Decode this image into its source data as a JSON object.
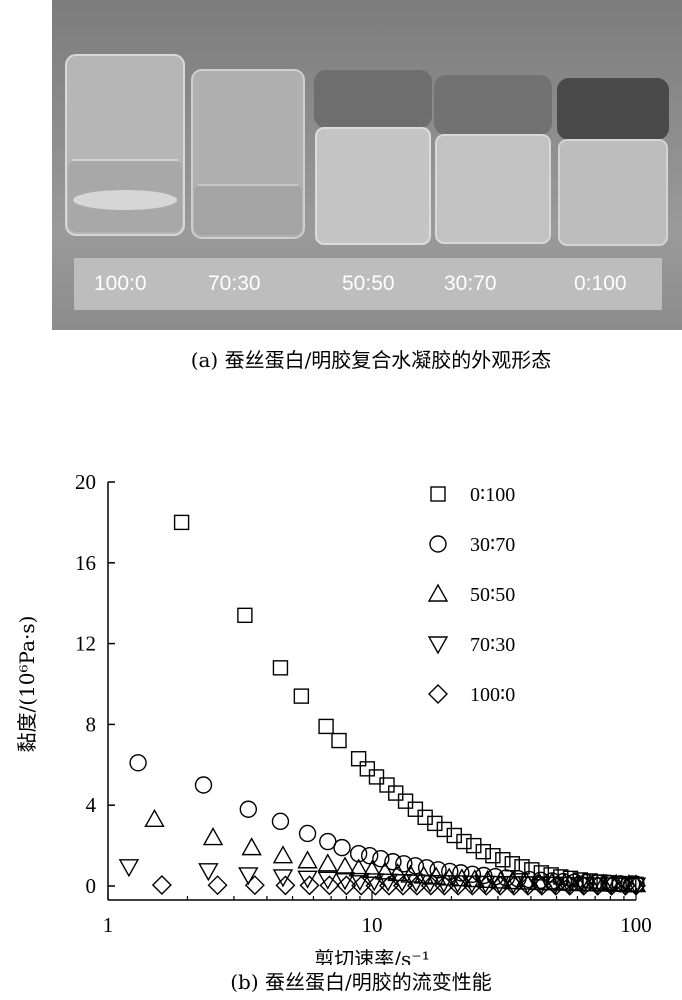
{
  "figure_a": {
    "caption": "(a) 蚕丝蛋白/明胶复合水凝胶的外观形态",
    "sample_labels": [
      "100:0",
      "70:30",
      "50:50",
      "30:70",
      "0:100"
    ]
  },
  "figure_b": {
    "caption": "(b) 蚕丝蛋白/明胶的流变性能"
  },
  "chart_data": {
    "type": "scatter",
    "xscale": "log",
    "xlim": [
      1,
      100
    ],
    "ylim": [
      0,
      20
    ],
    "xticks": [
      "1",
      "10",
      "100"
    ],
    "yticks": [
      "0",
      "4",
      "8",
      "12",
      "16",
      "20"
    ],
    "xlabel": "剪切速率/s⁻¹",
    "ylabel": "黏度/(10⁶Pa·s)",
    "legend_position": "top-right",
    "grid": false,
    "series": [
      {
        "name": "0∶100",
        "marker": "square",
        "x": [
          1.9,
          3.3,
          4.5,
          5.4,
          6.7,
          7.5,
          8.9,
          9.6,
          10.4,
          11.4,
          12.3,
          13.4,
          14.6,
          15.9,
          17.3,
          18.8,
          20.5,
          22.3,
          24.3,
          26.4,
          28.7,
          31.3,
          34.0,
          37.0,
          40.3,
          43.8,
          47.7,
          51.9,
          56.5,
          61.5,
          67.0,
          72.9,
          79.3,
          86.3,
          93.9,
          100
        ],
        "y": [
          18.0,
          13.4,
          10.8,
          9.4,
          7.9,
          7.2,
          6.3,
          5.8,
          5.4,
          5.0,
          4.6,
          4.2,
          3.8,
          3.4,
          3.1,
          2.8,
          2.5,
          2.2,
          2.0,
          1.7,
          1.5,
          1.3,
          1.1,
          0.95,
          0.8,
          0.65,
          0.55,
          0.45,
          0.38,
          0.3,
          0.25,
          0.2,
          0.16,
          0.12,
          0.1,
          0.08
        ]
      },
      {
        "name": "30∶70",
        "marker": "circle",
        "x": [
          1.3,
          2.3,
          3.4,
          4.5,
          5.7,
          6.8,
          7.7,
          8.9,
          9.8,
          10.8,
          12.0,
          13.2,
          14.6,
          16.1,
          17.8,
          19.7,
          21.7,
          24.0,
          26.5,
          29.3,
          32.3,
          35.7,
          39.4,
          43.5,
          48.1,
          53.1,
          58.6,
          64.8,
          71.5,
          79.0,
          87.3,
          96.3,
          100
        ],
        "y": [
          6.1,
          5.0,
          3.8,
          3.2,
          2.6,
          2.2,
          1.9,
          1.6,
          1.5,
          1.35,
          1.2,
          1.1,
          1.0,
          0.9,
          0.8,
          0.72,
          0.65,
          0.58,
          0.52,
          0.46,
          0.4,
          0.36,
          0.32,
          0.28,
          0.25,
          0.22,
          0.19,
          0.17,
          0.15,
          0.13,
          0.11,
          0.1,
          0.09
        ]
      },
      {
        "name": "50∶50",
        "marker": "triangle-up",
        "x": [
          1.5,
          2.5,
          3.5,
          4.6,
          5.7,
          6.8,
          7.9,
          8.9,
          10.0,
          11.2,
          12.5,
          14.0,
          15.7,
          17.5,
          19.6,
          21.9,
          24.5,
          27.4,
          30.7,
          34.3,
          38.4,
          42.9,
          48.0,
          53.7,
          60.1,
          67.2,
          75.2,
          84.1,
          94.0,
          100
        ],
        "y": [
          3.3,
          2.4,
          1.9,
          1.5,
          1.25,
          1.1,
          0.95,
          0.85,
          0.78,
          0.7,
          0.62,
          0.55,
          0.5,
          0.45,
          0.4,
          0.36,
          0.32,
          0.28,
          0.25,
          0.22,
          0.2,
          0.18,
          0.16,
          0.14,
          0.12,
          0.11,
          0.1,
          0.09,
          0.08,
          0.07
        ]
      },
      {
        "name": "70∶30",
        "marker": "triangle-down",
        "x": [
          1.2,
          2.4,
          3.4,
          4.6,
          5.7,
          6.8,
          7.9,
          9.0,
          10.2,
          11.5,
          13.0,
          14.7,
          16.6,
          18.7,
          21.1,
          23.9,
          26.9,
          30.4,
          34.3,
          38.8,
          43.8,
          49.4,
          55.8,
          63.0,
          71.1,
          80.3,
          90.7,
          100
        ],
        "y": [
          0.95,
          0.75,
          0.55,
          0.45,
          0.38,
          0.33,
          0.3,
          0.27,
          0.25,
          0.23,
          0.21,
          0.19,
          0.17,
          0.16,
          0.15,
          0.14,
          0.13,
          0.12,
          0.11,
          0.1,
          0.09,
          0.08,
          0.07,
          0.06,
          0.05,
          0.05,
          0.04,
          0.04
        ]
      },
      {
        "name": "100∶0",
        "marker": "diamond",
        "x": [
          1.6,
          2.6,
          3.6,
          4.7,
          5.8,
          6.9,
          8.0,
          9.1,
          10.3,
          11.6,
          13.1,
          14.8,
          16.7,
          18.8,
          21.2,
          24.0,
          27.1,
          30.6,
          34.5,
          39.0,
          44.0,
          49.7,
          56.1,
          63.4,
          71.6,
          80.8,
          91.2,
          100
        ],
        "y": [
          0.05,
          0.04,
          0.04,
          0.03,
          0.03,
          0.03,
          0.03,
          0.02,
          0.02,
          0.02,
          0.02,
          0.02,
          0.02,
          0.02,
          0.02,
          0.02,
          0.01,
          0.01,
          0.01,
          0.01,
          0.01,
          0.01,
          0.01,
          0.01,
          0.01,
          0.01,
          0.01,
          0.01
        ]
      }
    ]
  },
  "colors": {
    "photo_background": "#8a8a8a",
    "photo_glass": "#c8c8c8",
    "label_strip": "#bdbdbd",
    "marker_stroke": "#000000"
  }
}
